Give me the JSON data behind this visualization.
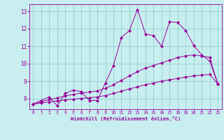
{
  "xlabel": "Windchill (Refroidissement éolien,°C)",
  "bg_color": "#c8eef0",
  "line_color": "#990099",
  "grid_color": "#88cccc",
  "xlim": [
    -0.5,
    23.5
  ],
  "ylim": [
    7.4,
    13.4
  ],
  "yticks": [
    8,
    9,
    10,
    11,
    12,
    13
  ],
  "xticks": [
    0,
    1,
    2,
    3,
    4,
    5,
    6,
    7,
    8,
    9,
    10,
    11,
    12,
    13,
    14,
    15,
    16,
    17,
    18,
    19,
    20,
    21,
    22,
    23
  ],
  "curve1_x": [
    0,
    1,
    2,
    3,
    4,
    5,
    6,
    7,
    8,
    9,
    10,
    11,
    12,
    13,
    14,
    15,
    16,
    17,
    18,
    19,
    20,
    21,
    22,
    23
  ],
  "curve1_y": [
    7.7,
    7.9,
    8.1,
    7.6,
    8.3,
    8.5,
    8.4,
    7.9,
    7.9,
    8.9,
    9.9,
    11.5,
    11.9,
    13.1,
    11.7,
    11.6,
    11.0,
    12.4,
    12.35,
    11.9,
    11.05,
    10.5,
    10.15,
    8.85
  ],
  "curve2_x": [
    0,
    1,
    2,
    3,
    4,
    5,
    6,
    7,
    8,
    9,
    10,
    11,
    12,
    13,
    14,
    15,
    16,
    17,
    18,
    19,
    20,
    21,
    22,
    23
  ],
  "curve2_y": [
    7.7,
    7.82,
    7.95,
    8.05,
    8.15,
    8.25,
    8.32,
    8.38,
    8.45,
    8.6,
    8.8,
    9.05,
    9.3,
    9.55,
    9.75,
    9.9,
    10.05,
    10.2,
    10.35,
    10.45,
    10.5,
    10.45,
    10.35,
    8.85
  ],
  "curve3_x": [
    0,
    1,
    2,
    3,
    4,
    5,
    6,
    7,
    8,
    9,
    10,
    11,
    12,
    13,
    14,
    15,
    16,
    17,
    18,
    19,
    20,
    21,
    22,
    23
  ],
  "curve3_y": [
    7.7,
    7.75,
    7.82,
    7.88,
    7.93,
    7.98,
    8.02,
    8.06,
    8.1,
    8.18,
    8.3,
    8.43,
    8.56,
    8.68,
    8.8,
    8.9,
    9.0,
    9.08,
    9.16,
    9.23,
    9.3,
    9.35,
    9.38,
    8.85
  ],
  "markersize": 2.5
}
